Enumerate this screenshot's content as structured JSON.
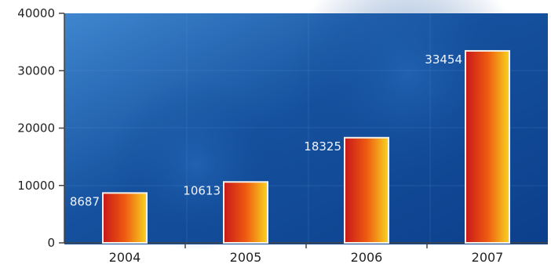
{
  "chart_data": {
    "type": "bar",
    "categories": [
      "2004",
      "2005",
      "2006",
      "2007"
    ],
    "values": [
      8687,
      10613,
      18325,
      33454
    ],
    "data_labels": [
      "8687",
      "10613",
      "18325",
      "33454"
    ],
    "yticks": [
      0,
      10000,
      20000,
      30000,
      40000
    ],
    "ylim": [
      0,
      40000
    ],
    "title": "",
    "xlabel": "",
    "ylabel": "",
    "grid": false,
    "legend": "none"
  },
  "colors": {
    "background_dark": "#0c3f8c",
    "background_light": "#3f86cf",
    "bar_dark": "#c8181a",
    "bar_mid": "#ee5a10",
    "bar_light": "#f8d422",
    "bar_border": "#f4f1ea",
    "axis": "#444444"
  }
}
